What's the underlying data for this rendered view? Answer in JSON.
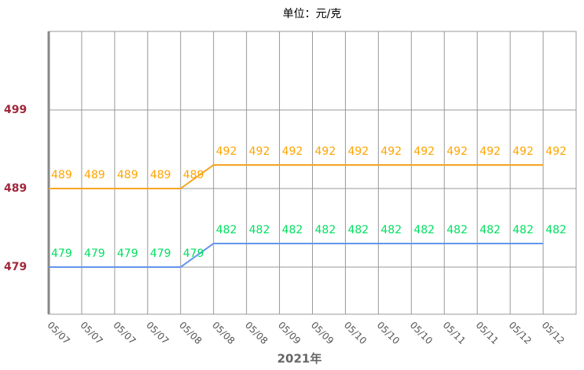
{
  "chart_data": {
    "type": "line",
    "title": "单位：元/克",
    "x_label": "2021年",
    "categories": [
      "05/07",
      "05/07",
      "05/07",
      "05/07",
      "05/08",
      "05/08",
      "05/08",
      "05/09",
      "05/09",
      "05/10",
      "05/10",
      "05/10",
      "05/11",
      "05/11",
      "05/12",
      "05/12"
    ],
    "series": [
      {
        "color": "#f5a623",
        "label_color": "#ffa500",
        "values": [
          489,
          489,
          489,
          489,
          489,
          492,
          492,
          492,
          492,
          492,
          492,
          492,
          492,
          492,
          492,
          492
        ]
      },
      {
        "color": "#6495ed",
        "label_color": "#00e060",
        "values": [
          479,
          479,
          479,
          479,
          479,
          482,
          482,
          482,
          482,
          482,
          482,
          482,
          482,
          482,
          482,
          482
        ]
      }
    ],
    "ylim": [
      473,
      509
    ],
    "yticks": [
      479,
      489,
      499
    ],
    "grid": true
  }
}
